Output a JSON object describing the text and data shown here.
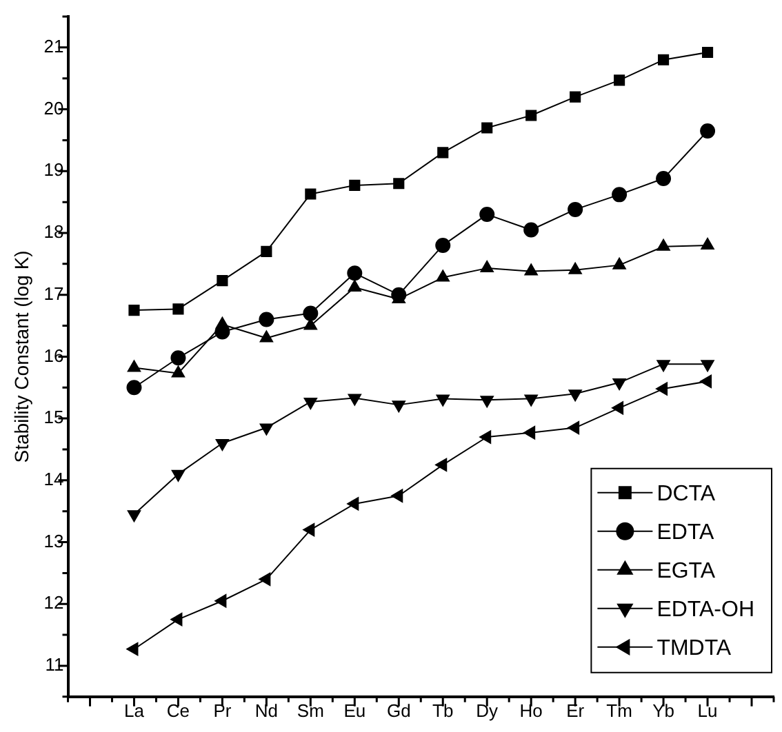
{
  "chart_data": {
    "type": "line",
    "ylabel": "Stability Constant (log K)",
    "categories": [
      "La",
      "Ce",
      "Pr",
      "Nd",
      "Sm",
      "Eu",
      "Gd",
      "Tb",
      "Dy",
      "Ho",
      "Er",
      "Tm",
      "Yb",
      "Lu"
    ],
    "ylim": [
      10.5,
      21.5
    ],
    "yticks": [
      {
        "value": 10.5,
        "label": null
      },
      11,
      {
        "value": 11.5,
        "label": null
      },
      12,
      {
        "value": 12.5,
        "label": null
      },
      13,
      {
        "value": 13.5,
        "label": null
      },
      14,
      {
        "value": 14.5,
        "label": null
      },
      15,
      {
        "value": 15.5,
        "label": null
      },
      16,
      {
        "value": 16.5,
        "label": null
      },
      17,
      {
        "value": 17.5,
        "label": null
      },
      18,
      {
        "value": 18.5,
        "label": null
      },
      19,
      {
        "value": 19.5,
        "label": null
      },
      20,
      {
        "value": 20.5,
        "label": null
      },
      21,
      {
        "value": 21.5,
        "label": null
      }
    ],
    "grid": false,
    "legend": "bottom right",
    "line_style": "solid",
    "series": [
      {
        "name": "DCTA",
        "color": "#000000",
        "marker": "square",
        "values": [
          16.75,
          16.77,
          17.23,
          17.7,
          18.63,
          18.77,
          18.8,
          19.3,
          19.7,
          19.9,
          20.2,
          20.47,
          20.8,
          20.92
        ]
      },
      {
        "name": "EDTA",
        "color": "#000000",
        "marker": "circle",
        "values": [
          15.5,
          15.98,
          16.4,
          16.6,
          16.7,
          17.35,
          17.0,
          17.8,
          18.3,
          18.05,
          18.38,
          18.62,
          18.88,
          19.65
        ]
      },
      {
        "name": "EGTA",
        "color": "#000000",
        "marker": "triangle",
        "values": [
          15.82,
          15.73,
          16.52,
          16.3,
          16.5,
          17.12,
          16.93,
          17.28,
          17.43,
          17.38,
          17.4,
          17.48,
          17.78,
          17.8
        ]
      },
      {
        "name": "EDTA-OH",
        "color": "#000000",
        "marker": "triangle-down",
        "values": [
          13.45,
          14.1,
          14.6,
          14.85,
          15.27,
          15.33,
          15.22,
          15.32,
          15.3,
          15.32,
          15.4,
          15.58,
          15.88,
          15.88
        ]
      },
      {
        "name": "TMDTA",
        "color": "#000000",
        "marker": "triangle-left",
        "values": [
          11.27,
          11.75,
          12.05,
          12.4,
          13.2,
          13.62,
          13.75,
          14.25,
          14.7,
          14.77,
          14.85,
          15.17,
          15.48,
          15.6
        ]
      }
    ]
  }
}
